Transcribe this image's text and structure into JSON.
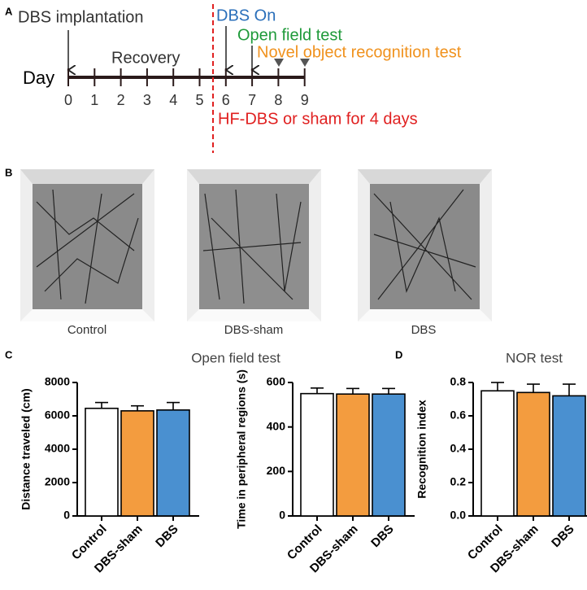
{
  "panel_labels": [
    "A",
    "B",
    "C",
    "D"
  ],
  "timeline": {
    "axis_label": "Day",
    "days": [
      0,
      1,
      2,
      3,
      4,
      5,
      6,
      7,
      8,
      9
    ],
    "events": {
      "implantation": "DBS implantation",
      "recovery": "Recovery",
      "dbs_on": "DBS On",
      "open_field": "Open field test",
      "nor": "Novel object recognition test",
      "stimulation": "HF-DBS or sham for 4 days"
    }
  },
  "photos": {
    "captions": [
      "Control",
      "DBS-sham",
      "DBS"
    ]
  },
  "panel_c_title": "Open field test",
  "chart_data": [
    {
      "type": "bar",
      "ylabel": "Distance traveled (cm)",
      "categories": [
        "Control",
        "DBS-sham",
        "DBS"
      ],
      "values": [
        6450,
        6300,
        6350
      ],
      "errors": [
        350,
        300,
        450
      ],
      "colors": [
        "#ffffff",
        "#f39c3f",
        "#4a90d0"
      ],
      "ylim": [
        0,
        8000
      ],
      "yticks": [
        0,
        2000,
        4000,
        6000,
        8000
      ]
    },
    {
      "type": "bar",
      "ylabel": "Time in peripheral regions (s)",
      "categories": [
        "Control",
        "DBS-sham",
        "DBS"
      ],
      "values": [
        550,
        548,
        548
      ],
      "errors": [
        25,
        25,
        25
      ],
      "colors": [
        "#ffffff",
        "#f39c3f",
        "#4a90d0"
      ],
      "ylim": [
        0,
        600
      ],
      "yticks": [
        0,
        200,
        400,
        600
      ]
    },
    {
      "type": "bar",
      "title": "NOR test",
      "ylabel": "Recognition index",
      "categories": [
        "Control",
        "DBS-sham",
        "DBS"
      ],
      "values": [
        0.75,
        0.74,
        0.72
      ],
      "errors": [
        0.05,
        0.05,
        0.07
      ],
      "colors": [
        "#ffffff",
        "#f39c3f",
        "#4a90d0"
      ],
      "ylim": [
        0,
        0.8
      ],
      "yticks": [
        {
          "value": 0,
          "label": "0.0"
        },
        0.2,
        0.4,
        0.6,
        0.8
      ]
    }
  ]
}
